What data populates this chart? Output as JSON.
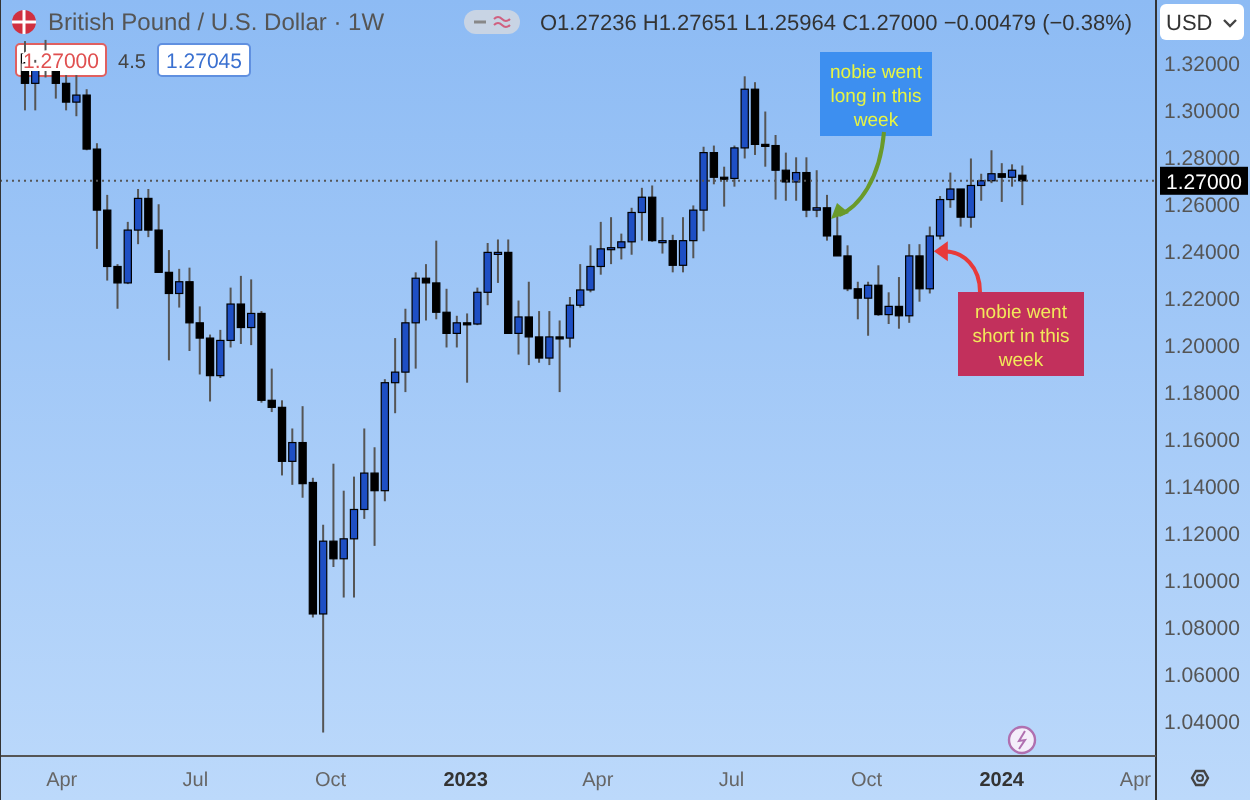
{
  "chart_data": {
    "type": "candlestick",
    "title": "British Pound / U.S. Dollar · 1W",
    "annotations": [
      "O1.27236 H1.27651 L1.25964 C1.27000 −0.00479 (−0.38%)",
      "1.27000",
      "4.5",
      "1.27045",
      "USD",
      {
        "text": "nobie went long in this week",
        "x": "2023-09-04",
        "y": 1.252
      },
      {
        "text": "nobie went short in this week",
        "x": "2023-11-13",
        "y": 1.24
      }
    ],
    "x": [
      "2022-03-07",
      "2022-03-14",
      "2022-03-21",
      "2022-03-28",
      "2022-04-04",
      "2022-04-11",
      "2022-04-18",
      "2022-04-25",
      "2022-05-02",
      "2022-05-09",
      "2022-05-16",
      "2022-05-23",
      "2022-05-30",
      "2022-06-06",
      "2022-06-13",
      "2022-06-20",
      "2022-06-27",
      "2022-07-04",
      "2022-07-11",
      "2022-07-18",
      "2022-07-25",
      "2022-08-01",
      "2022-08-08",
      "2022-08-15",
      "2022-08-22",
      "2022-08-29",
      "2022-09-05",
      "2022-09-12",
      "2022-09-19",
      "2022-09-26",
      "2022-10-03",
      "2022-10-10",
      "2022-10-17",
      "2022-10-24",
      "2022-10-31",
      "2022-11-07",
      "2022-11-14",
      "2022-11-21",
      "2022-11-28",
      "2022-12-05",
      "2022-12-12",
      "2022-12-19",
      "2022-12-26",
      "2023-01-02",
      "2023-01-09",
      "2023-01-16",
      "2023-01-23",
      "2023-01-30",
      "2023-02-06",
      "2023-02-13",
      "2023-02-20",
      "2023-02-27",
      "2023-03-06",
      "2023-03-13",
      "2023-03-20",
      "2023-03-27",
      "2023-04-03",
      "2023-04-10",
      "2023-04-17",
      "2023-04-24",
      "2023-05-01",
      "2023-05-08",
      "2023-05-15",
      "2023-05-22",
      "2023-05-29",
      "2023-06-05",
      "2023-06-12",
      "2023-06-19",
      "2023-06-26",
      "2023-07-03",
      "2023-07-10",
      "2023-07-17",
      "2023-07-24",
      "2023-07-31",
      "2023-08-07",
      "2023-08-14",
      "2023-08-21",
      "2023-08-28",
      "2023-09-04",
      "2023-09-11",
      "2023-09-18",
      "2023-09-25",
      "2023-10-02",
      "2023-10-09",
      "2023-10-16",
      "2023-10-23",
      "2023-10-30",
      "2023-11-06",
      "2023-11-13",
      "2023-11-20",
      "2023-11-27",
      "2023-12-04",
      "2023-12-11",
      "2023-12-18",
      "2023-12-25",
      "2024-01-01",
      "2024-01-08",
      "2024-01-15"
    ],
    "ohlc": [
      [
        1.324,
        1.3295,
        1.3,
        1.3115
      ],
      [
        1.3115,
        1.3215,
        1.3,
        1.318
      ],
      [
        1.318,
        1.33,
        1.314,
        1.318
      ],
      [
        1.318,
        1.3185,
        1.305,
        1.3115
      ],
      [
        1.3115,
        1.315,
        1.3,
        1.3035
      ],
      [
        1.3035,
        1.315,
        1.2975,
        1.3065
      ],
      [
        1.3065,
        1.309,
        1.283,
        1.2835
      ],
      [
        1.2835,
        1.286,
        1.241,
        1.2575
      ],
      [
        1.2575,
        1.264,
        1.2275,
        1.2335
      ],
      [
        1.2335,
        1.2345,
        1.2155,
        1.2265
      ],
      [
        1.2265,
        1.2525,
        1.226,
        1.249
      ],
      [
        1.249,
        1.2665,
        1.243,
        1.2625
      ],
      [
        1.2625,
        1.2665,
        1.246,
        1.249
      ],
      [
        1.249,
        1.26,
        1.231,
        1.231
      ],
      [
        1.231,
        1.2405,
        1.1935,
        1.222
      ],
      [
        1.222,
        1.2325,
        1.216,
        1.227
      ],
      [
        1.227,
        1.233,
        1.1975,
        1.2095
      ],
      [
        1.2095,
        1.2165,
        1.1875,
        1.203
      ],
      [
        1.203,
        1.2045,
        1.176,
        1.187
      ],
      [
        1.187,
        1.2065,
        1.186,
        1.202
      ],
      [
        1.202,
        1.2245,
        1.199,
        1.2175
      ],
      [
        1.2175,
        1.2295,
        1.2005,
        1.2075
      ],
      [
        1.2075,
        1.228,
        1.2,
        1.2135
      ],
      [
        1.2135,
        1.2145,
        1.1755,
        1.1765
      ],
      [
        1.1765,
        1.19,
        1.1715,
        1.1735
      ],
      [
        1.1735,
        1.1765,
        1.1445,
        1.1505
      ],
      [
        1.1505,
        1.1645,
        1.1405,
        1.1585
      ],
      [
        1.1585,
        1.174,
        1.135,
        1.141
      ],
      [
        1.1415,
        1.1435,
        1.084,
        1.0855
      ],
      [
        1.0855,
        1.1235,
        1.035,
        1.1165
      ],
      [
        1.1165,
        1.1495,
        1.1055,
        1.109
      ],
      [
        1.109,
        1.138,
        1.0925,
        1.1175
      ],
      [
        1.1175,
        1.144,
        1.0925,
        1.13
      ],
      [
        1.13,
        1.1645,
        1.126,
        1.1455
      ],
      [
        1.1455,
        1.1565,
        1.1145,
        1.138
      ],
      [
        1.138,
        1.1855,
        1.1335,
        1.184
      ],
      [
        1.184,
        1.203,
        1.171,
        1.1885
      ],
      [
        1.1885,
        1.2155,
        1.18,
        1.2095
      ],
      [
        1.2095,
        1.231,
        1.19,
        1.2285
      ],
      [
        1.2285,
        1.2345,
        1.2105,
        1.2265
      ],
      [
        1.2265,
        1.2445,
        1.211,
        1.214
      ],
      [
        1.214,
        1.224,
        1.199,
        1.205
      ],
      [
        1.205,
        1.2125,
        1.199,
        1.2095
      ],
      [
        1.2095,
        1.2135,
        1.184,
        1.209
      ],
      [
        1.209,
        1.2245,
        1.2085,
        1.2225
      ],
      [
        1.2225,
        1.2435,
        1.217,
        1.2395
      ],
      [
        1.2395,
        1.245,
        1.2265,
        1.2395
      ],
      [
        1.2395,
        1.245,
        1.205,
        1.205
      ],
      [
        1.205,
        1.219,
        1.196,
        1.212
      ],
      [
        1.212,
        1.227,
        1.1915,
        1.2035
      ],
      [
        1.2035,
        1.2145,
        1.1925,
        1.1945
      ],
      [
        1.1945,
        1.2145,
        1.1915,
        1.2035
      ],
      [
        1.2035,
        1.2105,
        1.18,
        1.203
      ],
      [
        1.203,
        1.2205,
        1.199,
        1.217
      ],
      [
        1.217,
        1.2345,
        1.216,
        1.2235
      ],
      [
        1.2235,
        1.2425,
        1.2225,
        1.2335
      ],
      [
        1.2335,
        1.2525,
        1.23,
        1.241
      ],
      [
        1.241,
        1.2545,
        1.2345,
        1.2415
      ],
      [
        1.2415,
        1.2475,
        1.2365,
        1.244
      ],
      [
        1.244,
        1.2585,
        1.2385,
        1.2565
      ],
      [
        1.2565,
        1.267,
        1.2445,
        1.263
      ],
      [
        1.263,
        1.268,
        1.244,
        1.2445
      ],
      [
        1.2445,
        1.2545,
        1.239,
        1.2445
      ],
      [
        1.2445,
        1.247,
        1.231,
        1.234
      ],
      [
        1.234,
        1.2545,
        1.231,
        1.2445
      ],
      [
        1.2445,
        1.2595,
        1.237,
        1.2575
      ],
      [
        1.2575,
        1.2845,
        1.2485,
        1.282
      ],
      [
        1.282,
        1.285,
        1.2685,
        1.2715
      ],
      [
        1.2715,
        1.276,
        1.259,
        1.271
      ],
      [
        1.271,
        1.285,
        1.2675,
        1.284
      ],
      [
        1.284,
        1.3145,
        1.2795,
        1.309
      ],
      [
        1.309,
        1.312,
        1.281,
        1.2855
      ],
      [
        1.2855,
        1.2995,
        1.276,
        1.285
      ],
      [
        1.285,
        1.2895,
        1.262,
        1.2745
      ],
      [
        1.2745,
        1.282,
        1.2615,
        1.2695
      ],
      [
        1.2695,
        1.28,
        1.2615,
        1.2735
      ],
      [
        1.2735,
        1.28,
        1.2545,
        1.2575
      ],
      [
        1.2575,
        1.2745,
        1.2545,
        1.2585
      ],
      [
        1.2585,
        1.264,
        1.2445,
        1.2465
      ],
      [
        1.2465,
        1.255,
        1.238,
        1.238
      ],
      [
        1.238,
        1.2425,
        1.223,
        1.224
      ],
      [
        1.224,
        1.227,
        1.211,
        1.22
      ],
      [
        1.22,
        1.227,
        1.204,
        1.2255
      ],
      [
        1.2255,
        1.234,
        1.2125,
        1.213
      ],
      [
        1.213,
        1.2225,
        1.209,
        1.2165
      ],
      [
        1.2165,
        1.229,
        1.207,
        1.2125
      ],
      [
        1.2125,
        1.243,
        1.2095,
        1.238
      ],
      [
        1.238,
        1.243,
        1.2185,
        1.224
      ],
      [
        1.224,
        1.2505,
        1.222,
        1.2465
      ],
      [
        1.2465,
        1.2635,
        1.245,
        1.262
      ],
      [
        1.262,
        1.2735,
        1.2585,
        1.2665
      ],
      [
        1.2665,
        1.2665,
        1.2505,
        1.2545
      ],
      [
        1.2545,
        1.2795,
        1.25,
        1.268
      ],
      [
        1.268,
        1.273,
        1.2615,
        1.27
      ],
      [
        1.27,
        1.283,
        1.269,
        1.273
      ],
      [
        1.273,
        1.2775,
        1.261,
        1.2715
      ],
      [
        1.2715,
        1.277,
        1.2675,
        1.2745
      ],
      [
        1.27236,
        1.27651,
        1.25964,
        1.27
      ]
    ],
    "xlim": [
      "2022-02-18",
      "2024-04-15"
    ],
    "xticks": [
      {
        "value": "2022-04-01",
        "label": "Apr"
      },
      {
        "value": "2022-07-01",
        "label": "Jul"
      },
      {
        "value": "2022-10-01",
        "label": "Oct"
      },
      {
        "value": "2023-01-01",
        "label": "2023"
      },
      {
        "value": "2023-04-01",
        "label": "Apr"
      },
      {
        "value": "2023-07-01",
        "label": "Jul"
      },
      {
        "value": "2023-10-01",
        "label": "Oct"
      },
      {
        "value": "2024-01-01",
        "label": "2024"
      },
      {
        "value": "2024-04-01",
        "label": "Apr"
      }
    ],
    "ylim": [
      1.025,
      1.347
    ],
    "yticks": [
      {
        "value": 1.04,
        "label": "1.04000"
      },
      {
        "value": 1.06,
        "label": "1.06000"
      },
      {
        "value": 1.08,
        "label": "1.08000"
      },
      {
        "value": 1.1,
        "label": "1.10000"
      },
      {
        "value": 1.12,
        "label": "1.12000"
      },
      {
        "value": 1.14,
        "label": "1.14000"
      },
      {
        "value": 1.16,
        "label": "1.16000"
      },
      {
        "value": 1.18,
        "label": "1.18000"
      },
      {
        "value": 1.2,
        "label": "1.20000"
      },
      {
        "value": 1.22,
        "label": "1.22000"
      },
      {
        "value": 1.24,
        "label": "1.24000"
      },
      {
        "value": 1.26,
        "label": "1.26000"
      },
      {
        "value": 1.28,
        "label": "1.28000"
      },
      {
        "value": 1.3,
        "label": "1.30000"
      },
      {
        "value": 1.32,
        "label": "1.32000"
      }
    ],
    "ref_lines": [
      {
        "axis": "y",
        "value": 1.27,
        "label": "1.27000",
        "color": "#555555",
        "line_style": "dotted"
      }
    ],
    "grid": false
  }
}
